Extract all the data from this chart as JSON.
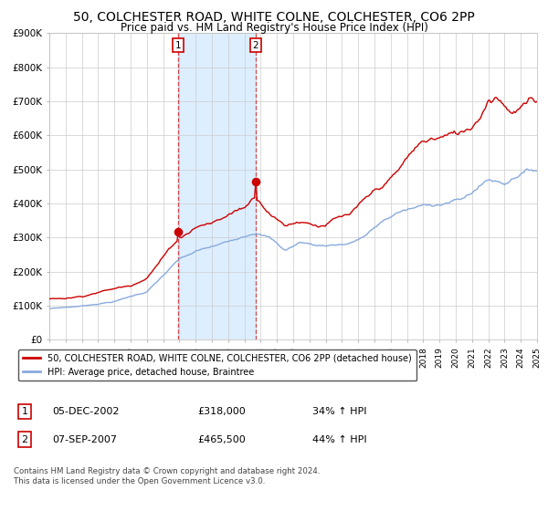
{
  "title": "50, COLCHESTER ROAD, WHITE COLNE, COLCHESTER, CO6 2PP",
  "subtitle": "Price paid vs. HM Land Registry's House Price Index (HPI)",
  "title_fontsize": 10,
  "subtitle_fontsize": 8.5,
  "background_color": "#ffffff",
  "plot_bg_color": "#ffffff",
  "grid_color": "#cccccc",
  "red_line_color": "#cc0000",
  "blue_line_color": "#88aadd",
  "shade_color": "#ddeeff",
  "ylim": [
    0,
    900000
  ],
  "yticks": [
    0,
    100000,
    200000,
    300000,
    400000,
    500000,
    600000,
    700000,
    800000,
    900000
  ],
  "ytick_labels": [
    "£0",
    "£100K",
    "£200K",
    "£300K",
    "£400K",
    "£500K",
    "£600K",
    "£700K",
    "£800K",
    "£900K"
  ],
  "year_start": 1995,
  "year_end": 2025,
  "purchase1_date": 2002.92,
  "purchase1_value": 318000,
  "purchase2_date": 2007.68,
  "purchase2_value": 465500,
  "legend_red": "50, COLCHESTER ROAD, WHITE COLNE, COLCHESTER, CO6 2PP (detached house)",
  "legend_blue": "HPI: Average price, detached house, Braintree",
  "table_row1": [
    "1",
    "05-DEC-2002",
    "£318,000",
    "34% ↑ HPI"
  ],
  "table_row2": [
    "2",
    "07-SEP-2007",
    "£465,500",
    "44% ↑ HPI"
  ],
  "footnote": "Contains HM Land Registry data © Crown copyright and database right 2024.\nThis data is licensed under the Open Government Licence v3.0."
}
